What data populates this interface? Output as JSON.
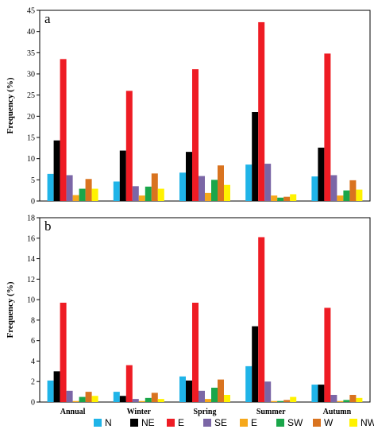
{
  "chart_data": [
    {
      "type": "bar",
      "panel_label": "a",
      "ylabel": "Frequency (%)",
      "ylim": [
        0,
        45
      ],
      "yticks": [
        "0",
        "5",
        "10",
        "15",
        "20",
        "25",
        "30",
        "35",
        "40",
        "45"
      ],
      "categories": [
        "Annual",
        "Winter",
        "Spring",
        "Summer",
        "Autumn"
      ],
      "series": [
        {
          "name": "N",
          "color": "#1fb4e8",
          "values": [
            6.4,
            4.6,
            6.7,
            8.6,
            5.8
          ]
        },
        {
          "name": "NE",
          "color": "#000000",
          "values": [
            14.3,
            11.9,
            11.6,
            21.0,
            12.6
          ]
        },
        {
          "name": "E",
          "color": "#ee1c24",
          "values": [
            33.5,
            26.0,
            31.1,
            42.2,
            34.8
          ]
        },
        {
          "name": "SE",
          "color": "#7b66a6",
          "values": [
            6.1,
            3.5,
            5.9,
            8.8,
            6.1
          ]
        },
        {
          "name": "E",
          "color": "#f6a81b",
          "values": [
            1.4,
            1.3,
            1.9,
            1.3,
            1.3
          ]
        },
        {
          "name": "SW",
          "color": "#1aa64a",
          "values": [
            2.9,
            3.4,
            5.0,
            0.8,
            2.5
          ]
        },
        {
          "name": "W",
          "color": "#d9731f",
          "values": [
            5.2,
            6.5,
            8.4,
            1.0,
            4.9
          ]
        },
        {
          "name": "NW",
          "color": "#fff200",
          "values": [
            2.9,
            2.9,
            3.8,
            1.6,
            2.7
          ]
        }
      ]
    },
    {
      "type": "bar",
      "panel_label": "b",
      "ylabel": "Frequency (%)",
      "ylim": [
        0,
        18
      ],
      "yticks": [
        "0",
        "2",
        "4",
        "6",
        "8",
        "10",
        "12",
        "14",
        "16",
        "18"
      ],
      "categories": [
        "Annual",
        "Winter",
        "Spring",
        "Summer",
        "Autumn"
      ],
      "series": [
        {
          "name": "N",
          "color": "#1fb4e8",
          "values": [
            2.1,
            1.0,
            2.5,
            3.5,
            1.7
          ]
        },
        {
          "name": "NE",
          "color": "#000000",
          "values": [
            3.0,
            0.6,
            2.1,
            7.4,
            1.7
          ]
        },
        {
          "name": "E",
          "color": "#ee1c24",
          "values": [
            9.7,
            3.6,
            9.7,
            16.1,
            9.2
          ]
        },
        {
          "name": "SE",
          "color": "#7b66a6",
          "values": [
            1.1,
            0.3,
            1.1,
            2.0,
            0.7
          ]
        },
        {
          "name": "E",
          "color": "#f6a81b",
          "values": [
            0.1,
            0.1,
            0.3,
            0.1,
            0.1
          ]
        },
        {
          "name": "SW",
          "color": "#1aa64a",
          "values": [
            0.5,
            0.4,
            1.4,
            0.1,
            0.2
          ]
        },
        {
          "name": "W",
          "color": "#d9731f",
          "values": [
            1.0,
            0.9,
            2.2,
            0.2,
            0.7
          ]
        },
        {
          "name": "NW",
          "color": "#fff200",
          "values": [
            0.6,
            0.3,
            0.7,
            0.5,
            0.4
          ]
        }
      ]
    }
  ]
}
